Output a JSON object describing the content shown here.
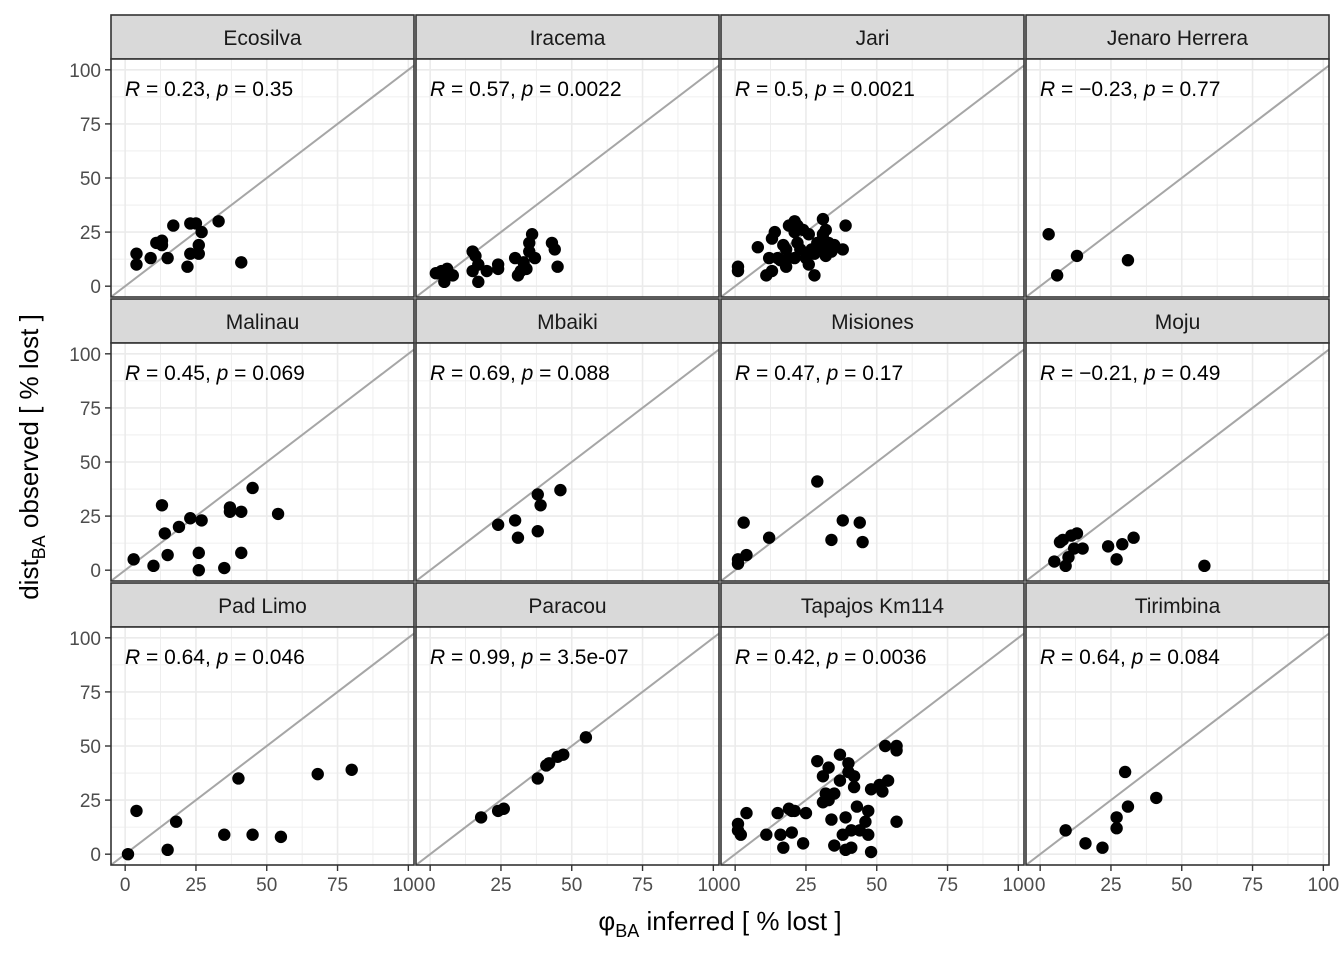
{
  "chart_data": {
    "type": "scatter",
    "xlabel": "φBA inferred [ % lost ]",
    "xlabel_main": "φ",
    "xlabel_sub": "BA",
    "xlabel_rest": " inferred [ % lost ]",
    "ylabel": "distBA observed [ % lost ]",
    "ylabel_main": "dist",
    "ylabel_sub": "BA",
    "ylabel_rest": " observed [ % lost ]",
    "xlim": [
      -5,
      102
    ],
    "ylim": [
      -5,
      105
    ],
    "xticks": [
      0,
      25,
      50,
      75,
      100
    ],
    "yticks": [
      0,
      25,
      50,
      75,
      100
    ],
    "grid": true,
    "reference_line": "y = x",
    "colors": {
      "points": "#000000",
      "reference_line": "#a6a6a6",
      "strip_bg": "#d9d9d9",
      "grid": "#ebebeb",
      "panel_border": "#333333"
    },
    "panels": [
      {
        "name": "Ecosilva",
        "r": "0.23",
        "p": "0.35",
        "points": [
          [
            4,
            10
          ],
          [
            4,
            15
          ],
          [
            9,
            13
          ],
          [
            11,
            20
          ],
          [
            13,
            21
          ],
          [
            13,
            19
          ],
          [
            15,
            13
          ],
          [
            17,
            28
          ],
          [
            22,
            9
          ],
          [
            23,
            15
          ],
          [
            23,
            29
          ],
          [
            25,
            29
          ],
          [
            26,
            19
          ],
          [
            26,
            15
          ],
          [
            27,
            25
          ],
          [
            33,
            30
          ],
          [
            41,
            11
          ]
        ]
      },
      {
        "name": "Iracema",
        "r": "0.57",
        "p": "0.0022",
        "points": [
          [
            2,
            6
          ],
          [
            3,
            6
          ],
          [
            4,
            7
          ],
          [
            5,
            2
          ],
          [
            5,
            7
          ],
          [
            6,
            8
          ],
          [
            8,
            5
          ],
          [
            15,
            16
          ],
          [
            15,
            7
          ],
          [
            16,
            14
          ],
          [
            17,
            10
          ],
          [
            17,
            2
          ],
          [
            20,
            7
          ],
          [
            24,
            8
          ],
          [
            24,
            10
          ],
          [
            30,
            13
          ],
          [
            31,
            5
          ],
          [
            32,
            7
          ],
          [
            33,
            11
          ],
          [
            34,
            8
          ],
          [
            35,
            16
          ],
          [
            35,
            20
          ],
          [
            36,
            24
          ],
          [
            37,
            13
          ],
          [
            43,
            20
          ],
          [
            44,
            17
          ],
          [
            45,
            9
          ]
        ]
      },
      {
        "name": "Jari",
        "r": "0.5",
        "p": "0.0021",
        "points": [
          [
            1,
            9
          ],
          [
            1,
            7
          ],
          [
            8,
            18
          ],
          [
            11,
            5
          ],
          [
            12,
            13
          ],
          [
            13,
            7
          ],
          [
            13,
            22
          ],
          [
            14,
            25
          ],
          [
            15,
            13
          ],
          [
            16,
            12
          ],
          [
            17,
            19
          ],
          [
            18,
            17
          ],
          [
            18,
            9
          ],
          [
            19,
            13
          ],
          [
            19,
            28
          ],
          [
            21,
            25
          ],
          [
            21,
            13
          ],
          [
            21,
            30
          ],
          [
            22,
            28
          ],
          [
            22,
            20
          ],
          [
            23,
            17
          ],
          [
            24,
            26
          ],
          [
            25,
            13
          ],
          [
            26,
            10
          ],
          [
            26,
            24
          ],
          [
            27,
            17
          ],
          [
            28,
            15
          ],
          [
            28,
            5
          ],
          [
            29,
            20
          ],
          [
            30,
            18
          ],
          [
            31,
            24
          ],
          [
            31,
            31
          ],
          [
            31,
            22
          ],
          [
            31,
            17
          ],
          [
            32,
            14
          ],
          [
            32,
            26
          ],
          [
            33,
            20
          ],
          [
            34,
            16
          ],
          [
            35,
            19
          ],
          [
            38,
            17
          ],
          [
            39,
            28
          ]
        ]
      },
      {
        "name": "Jenaro Herrera",
        "r": "−0.23",
        "p": "0.77",
        "points": [
          [
            3,
            24
          ],
          [
            6,
            5
          ],
          [
            13,
            14
          ],
          [
            31,
            12
          ]
        ]
      },
      {
        "name": "Malinau",
        "r": "0.45",
        "p": "0.069",
        "points": [
          [
            3,
            5
          ],
          [
            10,
            2
          ],
          [
            13,
            30
          ],
          [
            14,
            17
          ],
          [
            15,
            7
          ],
          [
            19,
            20
          ],
          [
            23,
            24
          ],
          [
            26,
            8
          ],
          [
            26,
            0
          ],
          [
            27,
            23
          ],
          [
            35,
            1
          ],
          [
            37,
            29
          ],
          [
            37,
            27
          ],
          [
            41,
            8
          ],
          [
            41,
            27
          ],
          [
            45,
            38
          ],
          [
            54,
            26
          ]
        ]
      },
      {
        "name": "Mbaiki",
        "r": "0.69",
        "p": "0.088",
        "points": [
          [
            24,
            21
          ],
          [
            30,
            23
          ],
          [
            31,
            15
          ],
          [
            38,
            35
          ],
          [
            38,
            18
          ],
          [
            39,
            30
          ],
          [
            46,
            37
          ]
        ]
      },
      {
        "name": "Misiones",
        "r": "0.47",
        "p": "0.17",
        "points": [
          [
            1,
            3
          ],
          [
            1,
            5
          ],
          [
            3,
            22
          ],
          [
            4,
            7
          ],
          [
            12,
            15
          ],
          [
            29,
            41
          ],
          [
            34,
            14
          ],
          [
            38,
            23
          ],
          [
            44,
            22
          ],
          [
            45,
            13
          ]
        ]
      },
      {
        "name": "Moju",
        "r": "−0.21",
        "p": "0.49",
        "points": [
          [
            5,
            4
          ],
          [
            7,
            13
          ],
          [
            8,
            14
          ],
          [
            9,
            2
          ],
          [
            10,
            6
          ],
          [
            11,
            16
          ],
          [
            12,
            10
          ],
          [
            13,
            17
          ],
          [
            15,
            10
          ],
          [
            24,
            11
          ],
          [
            27,
            5
          ],
          [
            29,
            12
          ],
          [
            33,
            15
          ],
          [
            58,
            2
          ]
        ]
      },
      {
        "name": "Pad Limo",
        "r": "0.64",
        "p": "0.046",
        "points": [
          [
            1,
            0
          ],
          [
            4,
            20
          ],
          [
            15,
            2
          ],
          [
            18,
            15
          ],
          [
            35,
            9
          ],
          [
            40,
            35
          ],
          [
            45,
            9
          ],
          [
            55,
            8
          ],
          [
            68,
            37
          ],
          [
            80,
            39
          ]
        ]
      },
      {
        "name": "Paracou",
        "r": "0.99",
        "p": "3.5e-07",
        "points": [
          [
            18,
            17
          ],
          [
            24,
            20
          ],
          [
            26,
            21
          ],
          [
            38,
            35
          ],
          [
            41,
            41
          ],
          [
            42,
            42
          ],
          [
            45,
            45
          ],
          [
            47,
            46
          ],
          [
            55,
            54
          ]
        ]
      },
      {
        "name": "Tapajos Km114",
        "r": "0.42",
        "p": "0.0036",
        "points": [
          [
            1,
            14
          ],
          [
            1,
            11
          ],
          [
            2,
            9
          ],
          [
            4,
            19
          ],
          [
            11,
            9
          ],
          [
            15,
            19
          ],
          [
            16,
            9
          ],
          [
            17,
            3
          ],
          [
            19,
            21
          ],
          [
            20,
            10
          ],
          [
            20,
            20
          ],
          [
            21,
            20
          ],
          [
            24,
            5
          ],
          [
            25,
            19
          ],
          [
            29,
            43
          ],
          [
            31,
            24
          ],
          [
            31,
            36
          ],
          [
            32,
            28
          ],
          [
            33,
            25
          ],
          [
            33,
            40
          ],
          [
            34,
            16
          ],
          [
            35,
            4
          ],
          [
            35,
            28
          ],
          [
            37,
            46
          ],
          [
            37,
            34
          ],
          [
            38,
            9
          ],
          [
            39,
            17
          ],
          [
            39,
            2
          ],
          [
            40,
            42
          ],
          [
            40,
            38
          ],
          [
            41,
            11
          ],
          [
            41,
            3
          ],
          [
            42,
            36
          ],
          [
            42,
            31
          ],
          [
            43,
            22
          ],
          [
            44,
            11
          ],
          [
            46,
            15
          ],
          [
            47,
            9
          ],
          [
            47,
            20
          ],
          [
            48,
            30
          ],
          [
            48,
            1
          ],
          [
            51,
            32
          ],
          [
            52,
            29
          ],
          [
            53,
            50
          ],
          [
            54,
            34
          ],
          [
            57,
            48
          ],
          [
            57,
            15
          ],
          [
            57,
            50
          ]
        ]
      },
      {
        "name": "Tirimbina",
        "r": "0.64",
        "p": "0.084",
        "points": [
          [
            9,
            11
          ],
          [
            16,
            5
          ],
          [
            22,
            3
          ],
          [
            27,
            17
          ],
          [
            27,
            12
          ],
          [
            30,
            38
          ],
          [
            31,
            22
          ],
          [
            41,
            26
          ]
        ]
      }
    ]
  }
}
